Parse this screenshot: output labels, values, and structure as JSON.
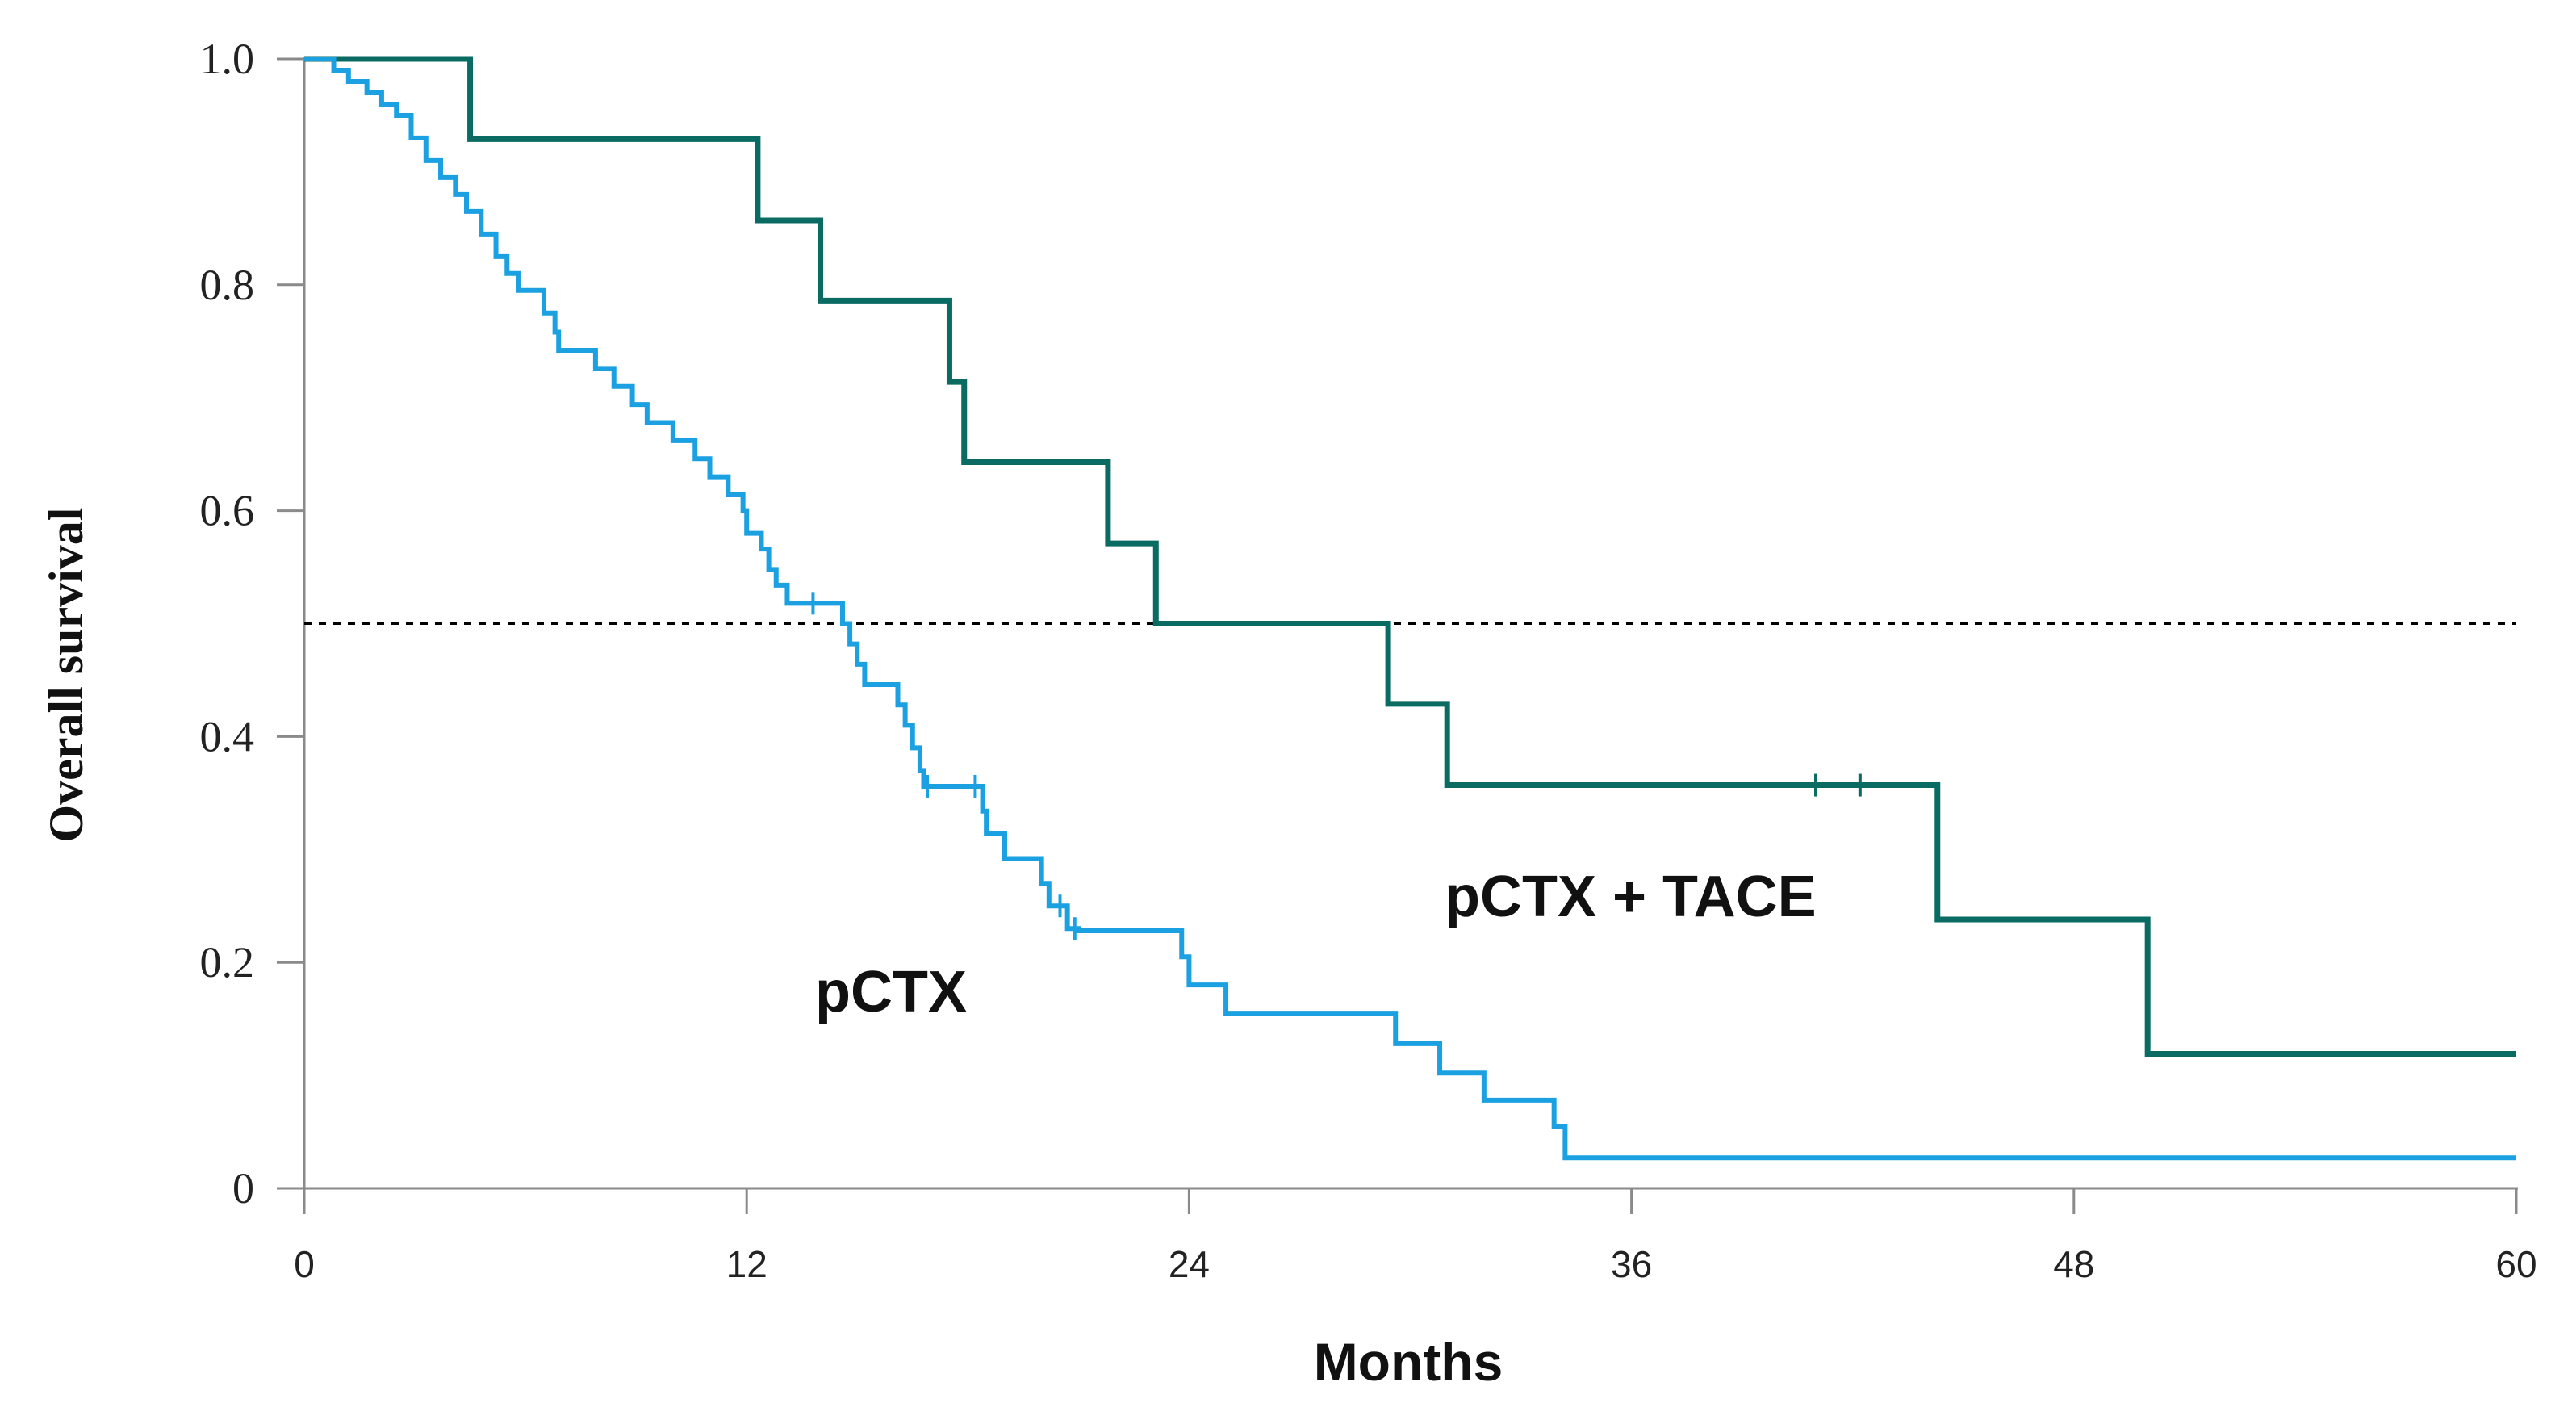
{
  "chart_data": {
    "type": "line",
    "style": "kaplan-meier step curves",
    "title": "",
    "xlabel": "Months",
    "ylabel": "Overall survival",
    "xlim": [
      0,
      60
    ],
    "ylim": [
      0,
      1.0
    ],
    "x_ticks": [
      0,
      12,
      24,
      36,
      48,
      60
    ],
    "x_tick_labels": [
      "0",
      "12",
      "24",
      "36",
      "48",
      "60"
    ],
    "y_ticks": [
      0,
      0.2,
      0.4,
      0.6,
      0.8,
      1.0
    ],
    "y_tick_labels": [
      "0",
      "0.2",
      "0.4",
      "0.6",
      "0.8",
      "1.0"
    ],
    "reference_line": {
      "y": 0.5,
      "style": "dotted",
      "color": "#000000"
    },
    "series": [
      {
        "name": "pCTX + TACE",
        "color": "#0a6b63",
        "label_position": "middle-right",
        "steps": [
          [
            0,
            1.0
          ],
          [
            4.5,
            0.929
          ],
          [
            12.3,
            0.857
          ],
          [
            14.0,
            0.786
          ],
          [
            17.5,
            0.714
          ],
          [
            17.9,
            0.643
          ],
          [
            21.8,
            0.571
          ],
          [
            23.1,
            0.5
          ],
          [
            29.4,
            0.429
          ],
          [
            31.0,
            0.357
          ],
          [
            44.3,
            0.238
          ],
          [
            50.0,
            0.119
          ],
          [
            60,
            0.119
          ]
        ],
        "censor_times": [
          41.0,
          42.2
        ]
      },
      {
        "name": "pCTX",
        "color": "#1ba1e2",
        "label_position": "lower-middle",
        "steps": [
          [
            0,
            1.0
          ],
          [
            0.8,
            0.99
          ],
          [
            1.2,
            0.98
          ],
          [
            1.7,
            0.97
          ],
          [
            2.1,
            0.96
          ],
          [
            2.5,
            0.95
          ],
          [
            2.9,
            0.93
          ],
          [
            3.3,
            0.91
          ],
          [
            3.7,
            0.895
          ],
          [
            4.1,
            0.88
          ],
          [
            4.4,
            0.865
          ],
          [
            4.8,
            0.845
          ],
          [
            5.2,
            0.825
          ],
          [
            5.5,
            0.81
          ],
          [
            5.8,
            0.795
          ],
          [
            6.5,
            0.775
          ],
          [
            6.8,
            0.758
          ],
          [
            6.9,
            0.742
          ],
          [
            7.9,
            0.726
          ],
          [
            8.4,
            0.71
          ],
          [
            8.9,
            0.694
          ],
          [
            9.3,
            0.678
          ],
          [
            10.0,
            0.662
          ],
          [
            10.6,
            0.646
          ],
          [
            11.0,
            0.63
          ],
          [
            11.5,
            0.614
          ],
          [
            11.9,
            0.6
          ],
          [
            12.0,
            0.58
          ],
          [
            12.4,
            0.566
          ],
          [
            12.6,
            0.548
          ],
          [
            12.8,
            0.534
          ],
          [
            13.1,
            0.518
          ],
          [
            14.6,
            0.5
          ],
          [
            14.8,
            0.482
          ],
          [
            15.0,
            0.464
          ],
          [
            15.2,
            0.446
          ],
          [
            16.1,
            0.428
          ],
          [
            16.3,
            0.41
          ],
          [
            16.5,
            0.39
          ],
          [
            16.7,
            0.37
          ],
          [
            16.8,
            0.356
          ],
          [
            18.4,
            0.334
          ],
          [
            18.5,
            0.314
          ],
          [
            19.0,
            0.292
          ],
          [
            20.0,
            0.27
          ],
          [
            20.2,
            0.25
          ],
          [
            20.7,
            0.23
          ],
          [
            21.0,
            0.228
          ],
          [
            23.8,
            0.205
          ],
          [
            24.0,
            0.18
          ],
          [
            25.0,
            0.155
          ],
          [
            29.6,
            0.128
          ],
          [
            30.8,
            0.102
          ],
          [
            32.0,
            0.078
          ],
          [
            33.9,
            0.055
          ],
          [
            34.2,
            0.027
          ],
          [
            60,
            0.027
          ]
        ],
        "censor_times": [
          13.8,
          16.9,
          18.2,
          20.5,
          20.9
        ]
      }
    ]
  }
}
